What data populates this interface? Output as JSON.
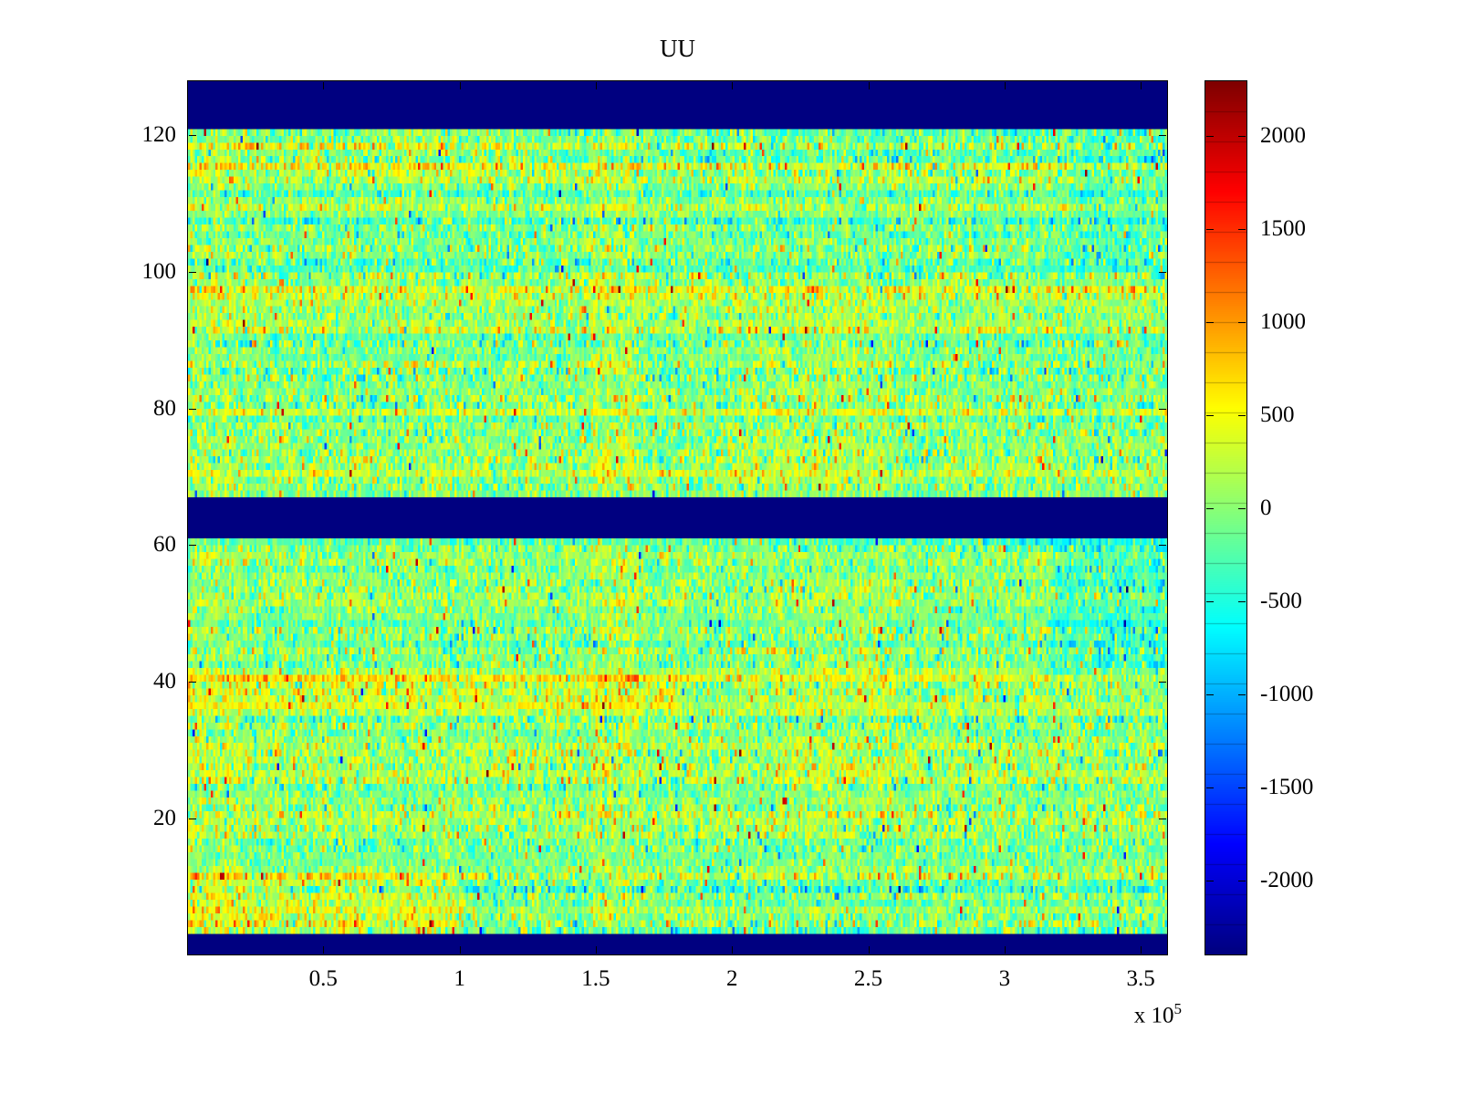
{
  "figure": {
    "background": "#ffffff",
    "axes_color": "#000000"
  },
  "chart_data": {
    "type": "heatmap",
    "title": "UU",
    "xlabel": "",
    "ylabel": "",
    "xlim": [
      0,
      360000
    ],
    "ylim": [
      0,
      128
    ],
    "x_exponent": {
      "prefix": "x 10",
      "sup": "5"
    },
    "xticks": {
      "values": [
        50000,
        100000,
        150000,
        200000,
        250000,
        300000,
        350000
      ],
      "labels": [
        "0.5",
        "1",
        "1.5",
        "2",
        "2.5",
        "3",
        "3.5"
      ]
    },
    "yticks": {
      "values": [
        20,
        40,
        60,
        80,
        100,
        120
      ],
      "labels": [
        "20",
        "40",
        "60",
        "80",
        "100",
        "120"
      ]
    },
    "grid_on": false,
    "colormap": "jet",
    "clim": [
      -2400,
      2300
    ],
    "colorbar": {
      "position": "right",
      "tick_values": [
        2000,
        1500,
        1000,
        500,
        0,
        -500,
        -1000,
        -1500,
        -2000
      ],
      "tick_labels": [
        "2000",
        "1500",
        "1000",
        "500",
        "0",
        "-500",
        "-1000",
        "-1500",
        "-2000"
      ],
      "segments": 29
    },
    "grid": {
      "cols": 430,
      "rows": 128
    },
    "solid_bands_rows": [
      [
        0,
        3
      ],
      [
        61,
        67
      ],
      [
        121,
        128
      ]
    ],
    "band_value": -2400,
    "noise": {
      "seed": 20240613,
      "mean": 0,
      "std": 340,
      "row_offset_std": 145,
      "spike_prob": 0.013,
      "spike_min": 650,
      "spike_max": 1750,
      "spike_positive_frac": 0.72
    },
    "features": [
      {
        "rows": [
          0,
          12
        ],
        "cols_frac": [
          0,
          0.28
        ],
        "boost": 380
      },
      {
        "rows": [
          36,
          41
        ],
        "cols_frac": [
          0,
          0.5
        ],
        "boost": 250
      },
      {
        "rows": [
          114,
          121
        ],
        "cols_frac": [
          0,
          0.35
        ],
        "boost": 190
      },
      {
        "rows": [
          3,
          61
        ],
        "cols_frac": [
          0.41,
          0.46
        ],
        "boost": 170
      },
      {
        "rows": [
          67,
          121
        ],
        "cols_frac": [
          0.41,
          0.46
        ],
        "boost": 170
      },
      {
        "rows": [
          20,
          55
        ],
        "cols_frac": [
          0.6,
          0.72
        ],
        "boost": 110
      },
      {
        "rows": [
          67,
          95
        ],
        "cols_frac": [
          0.55,
          0.72
        ],
        "boost": 140
      },
      {
        "rows": [
          40,
          62
        ],
        "cols_frac": [
          0.88,
          1.0
        ],
        "boost": -280
      },
      {
        "rows": [
          100,
          121
        ],
        "cols_frac": [
          0.9,
          1.0
        ],
        "boost": -160
      },
      {
        "rows": [
          0,
          128
        ],
        "cols_frac": [
          0,
          0.06
        ],
        "boost": 90
      }
    ]
  }
}
